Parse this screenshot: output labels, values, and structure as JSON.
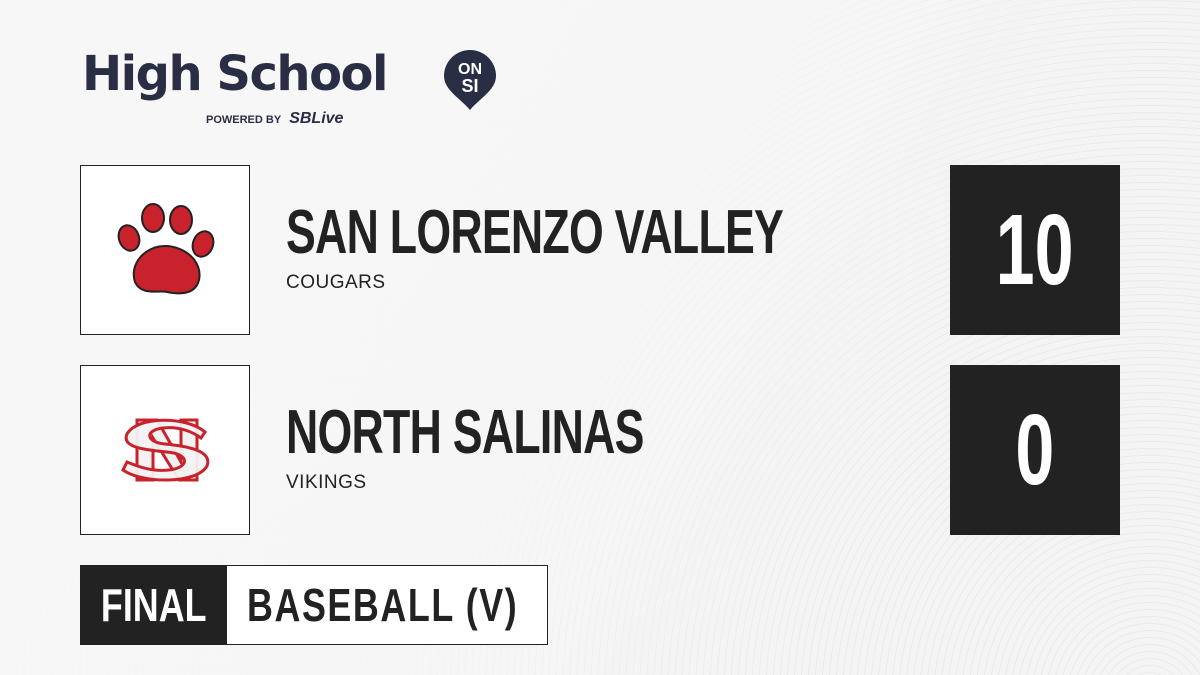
{
  "brand": {
    "title": "High School",
    "badge_top": "ON",
    "badge_bottom": "SI",
    "powered_by": "POWERED BY",
    "partner": "SBLive",
    "accent": "#27b0e6",
    "navy": "#2a2e45"
  },
  "teams": [
    {
      "name": "SAN LORENZO VALLEY",
      "mascot": "COUGARS",
      "score": "10",
      "logo": "paw-print-icon",
      "logo_color": "#c8232c"
    },
    {
      "name": "NORTH SALINAS",
      "mascot": "VIKINGS",
      "score": "0",
      "logo": "ns-monogram-icon",
      "logo_color": "#c8232c"
    }
  ],
  "game": {
    "status": "FINAL",
    "sport": "BASEBALL (V)"
  }
}
